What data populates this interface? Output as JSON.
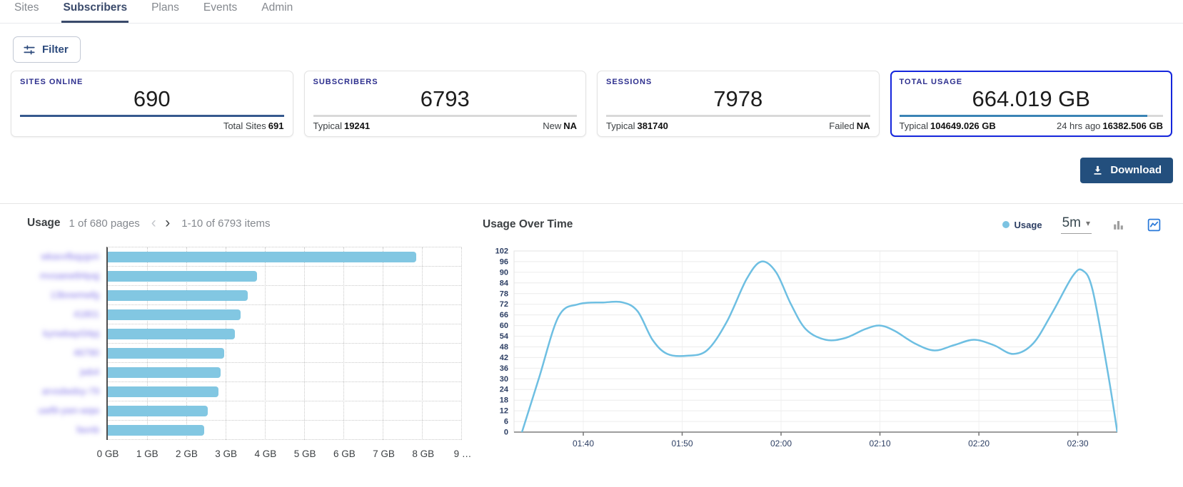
{
  "nav": {
    "items": [
      {
        "label": "Sites",
        "active": false
      },
      {
        "label": "Subscribers",
        "active": true
      },
      {
        "label": "Plans",
        "active": false
      },
      {
        "label": "Events",
        "active": false
      },
      {
        "label": "Admin",
        "active": false
      }
    ]
  },
  "toolbar": {
    "filter_label": "Filter"
  },
  "cards": [
    {
      "title": "SITES ONLINE",
      "value": "690",
      "progress_pct": 100,
      "progress_color": "#36598E",
      "footer_right": {
        "label": "Total Sites",
        "value": "691"
      },
      "highlight": false
    },
    {
      "title": "SUBSCRIBERS",
      "value": "6793",
      "progress_pct": 0,
      "progress_color": "#36598E",
      "footer_left": {
        "label": "Typical",
        "value": "19241"
      },
      "footer_right": {
        "label": "New",
        "value": "NA"
      },
      "highlight": false
    },
    {
      "title": "SESSIONS",
      "value": "7978",
      "progress_pct": 0,
      "progress_color": "#36598E",
      "footer_left": {
        "label": "Typical",
        "value": "381740"
      },
      "footer_right": {
        "label": "Failed",
        "value": "NA"
      },
      "highlight": false
    },
    {
      "title": "TOTAL USAGE",
      "value": "664.019 GB",
      "progress_pct": 94,
      "progress_color": "#3B84B5",
      "footer_left": {
        "label": "Typical",
        "value": "104649.026 GB"
      },
      "footer_right": {
        "label": "24 hrs ago",
        "value": "16382.506 GB"
      },
      "highlight": true
    }
  ],
  "download": {
    "label": "Download"
  },
  "usage_panel": {
    "title": "Usage",
    "pagination": {
      "pages_text": "1 of 680 pages",
      "prev_icon": "‹",
      "next_icon": "›",
      "items_text": "1-10 of 6793 items"
    }
  },
  "usage_over_time_panel": {
    "title": "Usage Over Time",
    "legend": {
      "label": "Usage",
      "dot_color": "#7CC3E2"
    },
    "interval": {
      "value": "5m",
      "caret_icon": "▾"
    }
  },
  "theme": {
    "highlight_border": "#1526DD",
    "progress_track": "#D9D9D9",
    "accent_navy": "#2D2F8E",
    "download_bg": "#234F7D",
    "icon_blue": "#2979D9"
  },
  "chart_data": [
    {
      "type": "bar",
      "title": "Usage",
      "orientation": "horizontal",
      "color": "#82C7E2",
      "labels_redacted": true,
      "categories": [
        "wkavvfbqygvn",
        "mvsaewt94pqj",
        "13bvwmwfg",
        "41801",
        "kynwbayt34pj",
        "46790",
        "jwb4",
        "arvsdwdsy-79",
        "uwf9-ywn-wqw",
        "favnb"
      ],
      "values": [
        7.86,
        3.8,
        3.57,
        3.39,
        3.24,
        2.97,
        2.88,
        2.81,
        2.54,
        2.46
      ],
      "unit": "GB",
      "xlim": [
        0,
        9
      ],
      "x_tick_labels": [
        "0 GB",
        "1 GB",
        "2 GB",
        "3 GB",
        "4 GB",
        "5 GB",
        "6 GB",
        "7 GB",
        "8 GB",
        "9 …"
      ],
      "grid": "dotted"
    },
    {
      "type": "line",
      "title": "Usage Over Time",
      "ylim": [
        0,
        102
      ],
      "y_ticks": [
        0,
        6,
        12,
        18,
        24,
        30,
        36,
        42,
        48,
        54,
        60,
        66,
        72,
        78,
        84,
        90,
        96,
        102
      ],
      "x_domain_minutes": [
        0,
        61
      ],
      "x_tick_labels": [
        "01:40",
        "01:50",
        "02:00",
        "02:10",
        "02:20",
        "02:30"
      ],
      "x_tick_positions": [
        7,
        17,
        27,
        37,
        47,
        57
      ],
      "legend_position": "top-right",
      "grid": true,
      "series": [
        {
          "name": "Usage",
          "color": "#6EBFE2",
          "points": [
            [
              0.8,
              0
            ],
            [
              2.5,
              30
            ],
            [
              4.5,
              65
            ],
            [
              6.5,
              72
            ],
            [
              9,
              73
            ],
            [
              11,
              73
            ],
            [
              12.5,
              68
            ],
            [
              14,
              52
            ],
            [
              15.5,
              44
            ],
            [
              17.5,
              43
            ],
            [
              19.5,
              46
            ],
            [
              21.5,
              62
            ],
            [
              23.5,
              86
            ],
            [
              25,
              96
            ],
            [
              26.5,
              90
            ],
            [
              28,
              72
            ],
            [
              29.5,
              58
            ],
            [
              31.5,
              52
            ],
            [
              33.5,
              53
            ],
            [
              35.5,
              58
            ],
            [
              37,
              60
            ],
            [
              38.5,
              57
            ],
            [
              40.5,
              50
            ],
            [
              42.5,
              46
            ],
            [
              44.5,
              49
            ],
            [
              46.5,
              52
            ],
            [
              48.5,
              49
            ],
            [
              50.5,
              44
            ],
            [
              52.5,
              50
            ],
            [
              54.5,
              68
            ],
            [
              56.5,
              88
            ],
            [
              57.5,
              91
            ],
            [
              58.5,
              80
            ],
            [
              60,
              35
            ],
            [
              61,
              0
            ]
          ]
        }
      ]
    }
  ]
}
